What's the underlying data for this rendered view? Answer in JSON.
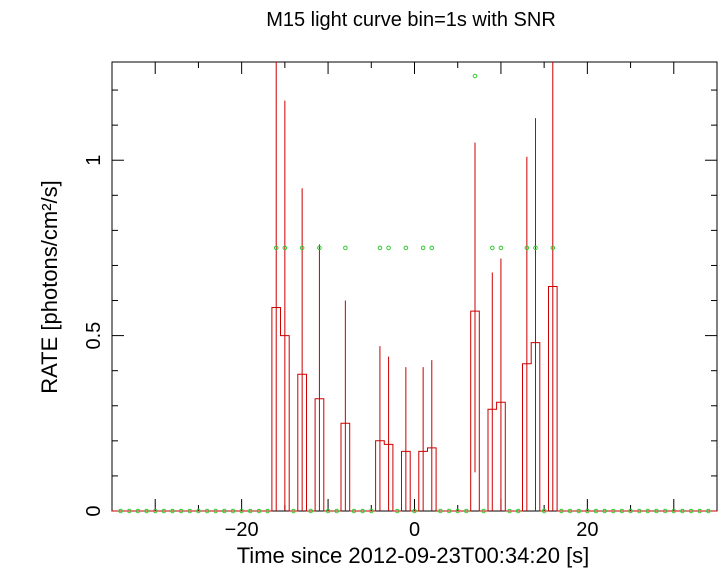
{
  "chart_data": {
    "type": "line",
    "title": "M15 light curve bin=1s with SNR",
    "xlabel": "Time since 2012-09-23T00:34:20 [s]",
    "ylabel": "RATE [photons/cm²/s]",
    "xlim": [
      -35,
      35
    ],
    "ylim": [
      0,
      1.28
    ],
    "x_ticks": [
      -20,
      0,
      20
    ],
    "x_tick_labels": [
      "−20",
      "0",
      "20"
    ],
    "y_ticks": [
      0,
      0.5,
      1
    ],
    "y_tick_labels": [
      "0",
      "0.5",
      "1"
    ],
    "grid": false,
    "series": [
      {
        "style": "step",
        "color": "#cc0000",
        "x": [
          -16,
          -15,
          -13,
          -11,
          -8,
          -4,
          -3,
          -1,
          1,
          2,
          7,
          9,
          10,
          13,
          14,
          16
        ],
        "values": [
          0.58,
          0.5,
          0.39,
          0.32,
          0.25,
          0.2,
          0.19,
          0.17,
          0.17,
          0.18,
          0.57,
          0.29,
          0.31,
          0.42,
          0.48,
          0.64
        ],
        "err_low": [
          0.0,
          0.0,
          0.0,
          0.0,
          0.0,
          0.0,
          0.0,
          0.0,
          0.0,
          0.0,
          0.11,
          0.0,
          0.0,
          0.0,
          0.0,
          0.0
        ],
        "err_high": [
          1.28,
          1.17,
          0.92,
          0.76,
          0.6,
          0.47,
          0.44,
          0.41,
          0.41,
          0.43,
          1.05,
          0.68,
          0.72,
          1.01,
          1.12,
          1.28
        ]
      },
      {
        "style": "markers",
        "color": "#33cc33",
        "x": [
          -16,
          -15,
          -13,
          -11,
          -8,
          -4,
          -3,
          -1,
          1,
          2,
          7,
          9,
          10,
          13,
          14,
          16
        ],
        "values": [
          0.75,
          0.75,
          0.75,
          0.75,
          0.75,
          0.75,
          0.75,
          0.75,
          0.75,
          0.75,
          1.24,
          0.75,
          0.75,
          0.75,
          0.75,
          0.75
        ]
      }
    ]
  }
}
